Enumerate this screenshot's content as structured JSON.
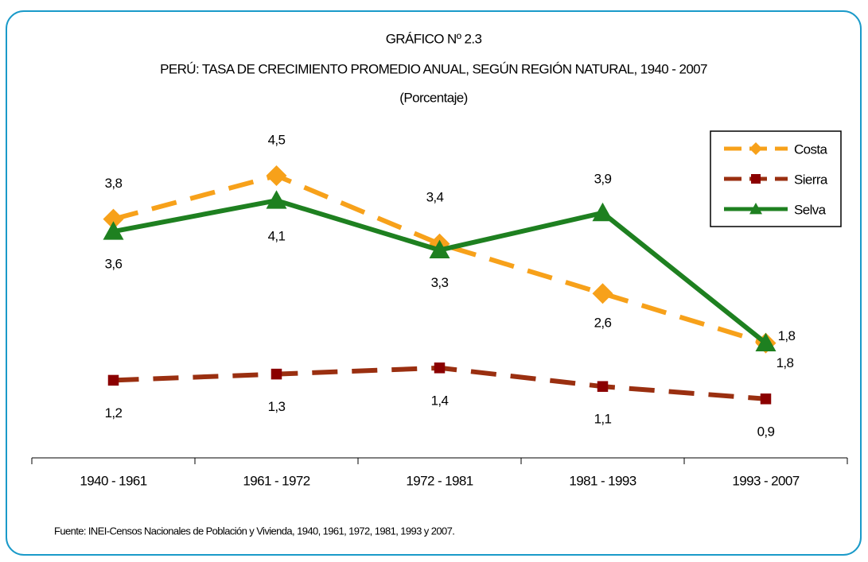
{
  "chart_data": {
    "type": "line",
    "title": "GRÁFICO Nº 2.3",
    "subtitle": "PERÚ: TASA DE CRECIMIENTO PROMEDIO ANUAL, SEGÚN REGIÓN NATURAL, 1940 - 2007",
    "unit_label": "(Porcentaje)",
    "categories": [
      "1940 - 1961",
      "1961 - 1972",
      "1972 - 1981",
      "1981 - 1993",
      "1993 - 2007"
    ],
    "series": [
      {
        "name": "Costa",
        "color": "#f7a11a",
        "dash": true,
        "marker": "diamond",
        "values": [
          3.8,
          4.5,
          3.4,
          2.6,
          1.8
        ],
        "value_labels": [
          "3,8",
          "4,5",
          "3,4",
          "2,6",
          "1,8"
        ]
      },
      {
        "name": "Sierra",
        "color": "#9a2f10",
        "marker_color": "#8b0000",
        "dash": true,
        "marker": "square",
        "values": [
          1.2,
          1.3,
          1.4,
          1.1,
          0.9
        ],
        "value_labels": [
          "1,2",
          "1,3",
          "1,4",
          "1,1",
          "0,9"
        ]
      },
      {
        "name": "Selva",
        "color": "#1e8020",
        "dash": false,
        "marker": "triangle",
        "values": [
          3.6,
          4.1,
          3.3,
          3.9,
          1.8
        ],
        "value_labels": [
          "3,6",
          "4,1",
          "3,3",
          "3,9",
          "1,8"
        ]
      }
    ],
    "ylim": [
      0,
      5
    ],
    "legend": "upper right",
    "source": "Fuente: INEI-Censos Nacionales de Población y Vivienda, 1940, 1961, 1972, 1981, 1993  y 2007."
  }
}
